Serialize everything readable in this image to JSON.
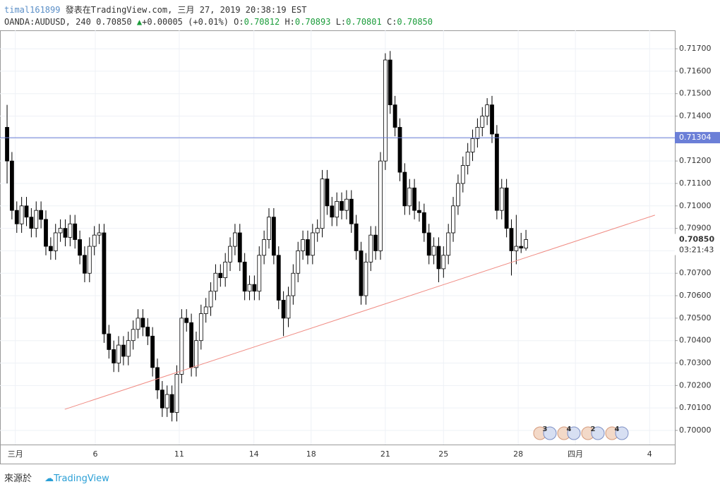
{
  "header": {
    "user": "timal161899",
    "published": "發表在TradingView.com, 三月 27, 2019 20:38:19 EST",
    "symbol": "OANDA:AUDUSD, 240",
    "price": "0.70850",
    "change": "+0.00005 (+0.01%)",
    "o_label": "O:",
    "o": "0.70812",
    "h_label": "H:",
    "h": "0.70893",
    "l_label": "L:",
    "l": "0.70801",
    "c_label": "C:",
    "c": "0.70850"
  },
  "footer": {
    "source": "來源於",
    "brand": "TradingView"
  },
  "chart_data": {
    "type": "candlestick",
    "open": [
      0.7135,
      0.712,
      0.7098,
      0.7092,
      0.71,
      0.7095,
      0.709,
      0.7098,
      0.7094,
      0.7082,
      0.708,
      0.7088,
      0.709,
      0.7086,
      0.7092,
      0.7085,
      0.7078,
      0.707,
      0.7082,
      0.7087,
      0.7088,
      0.7043,
      0.7036,
      0.703,
      0.7038,
      0.7033,
      0.704,
      0.7045,
      0.705,
      0.7046,
      0.7042,
      0.7028,
      0.7018,
      0.701,
      0.7016,
      0.7008,
      0.7025,
      0.705,
      0.7048,
      0.7028,
      0.704,
      0.7052,
      0.7055,
      0.7062,
      0.707,
      0.7068,
      0.7075,
      0.7082,
      0.7088,
      0.7075,
      0.7062,
      0.7065,
      0.7062,
      0.7078,
      0.7085,
      0.7095,
      0.7078,
      0.7058,
      0.705,
      0.706,
      0.707,
      0.708,
      0.7085,
      0.7078,
      0.7088,
      0.709,
      0.7112,
      0.71,
      0.7095,
      0.7102,
      0.7098,
      0.7103,
      0.7092,
      0.708,
      0.706,
      0.7075,
      0.7087,
      0.708,
      0.712,
      0.7165,
      0.7145,
      0.7135,
      0.7115,
      0.71,
      0.7108,
      0.7098,
      0.7097,
      0.7088,
      0.7078,
      0.7082,
      0.7072,
      0.7078,
      0.7088,
      0.71,
      0.711,
      0.7118,
      0.7124,
      0.713,
      0.7135,
      0.714,
      0.7145,
      0.7132,
      0.7098,
      0.7108,
      0.709,
      0.708,
      0.7082,
      0.70812
    ],
    "high": [
      0.7145,
      0.7124,
      0.7102,
      0.7104,
      0.7104,
      0.7099,
      0.7102,
      0.7102,
      0.7098,
      0.7086,
      0.7092,
      0.7094,
      0.7094,
      0.7096,
      0.7096,
      0.7089,
      0.7082,
      0.7086,
      0.7091,
      0.7092,
      0.7092,
      0.7047,
      0.704,
      0.7042,
      0.7042,
      0.7044,
      0.7049,
      0.7054,
      0.7054,
      0.705,
      0.7046,
      0.7032,
      0.7022,
      0.702,
      0.702,
      0.7029,
      0.7054,
      0.7054,
      0.7052,
      0.7044,
      0.7056,
      0.7059,
      0.7066,
      0.7074,
      0.7074,
      0.7079,
      0.7086,
      0.7092,
      0.7092,
      0.7079,
      0.7069,
      0.7069,
      0.7082,
      0.7089,
      0.7099,
      0.7099,
      0.7082,
      0.7062,
      0.7064,
      0.7074,
      0.7084,
      0.7089,
      0.7089,
      0.7092,
      0.7094,
      0.7116,
      0.7116,
      0.7104,
      0.7106,
      0.7106,
      0.7107,
      0.7107,
      0.7096,
      0.7084,
      0.7079,
      0.7091,
      0.7091,
      0.7124,
      0.7168,
      0.7169,
      0.7149,
      0.7139,
      0.7119,
      0.7112,
      0.7112,
      0.7102,
      0.7101,
      0.7092,
      0.7086,
      0.7086,
      0.7082,
      0.7092,
      0.7104,
      0.7114,
      0.7122,
      0.7128,
      0.7134,
      0.7139,
      0.7144,
      0.7148,
      0.7149,
      0.7136,
      0.7112,
      0.7112,
      0.7094,
      0.7096,
      0.7088,
      0.70893
    ],
    "low": [
      0.711,
      0.7094,
      0.7088,
      0.7088,
      0.7091,
      0.7086,
      0.7086,
      0.709,
      0.7078,
      0.7076,
      0.7076,
      0.7084,
      0.7082,
      0.7082,
      0.7081,
      0.7074,
      0.7066,
      0.7066,
      0.7078,
      0.7083,
      0.7039,
      0.7032,
      0.7026,
      0.7026,
      0.7029,
      0.7029,
      0.7036,
      0.7041,
      0.7042,
      0.7038,
      0.7024,
      0.7014,
      0.7006,
      0.7006,
      0.7004,
      0.7004,
      0.7021,
      0.7044,
      0.7024,
      0.7024,
      0.7036,
      0.7048,
      0.7051,
      0.7058,
      0.7064,
      0.7064,
      0.7071,
      0.7078,
      0.7071,
      0.7058,
      0.7058,
      0.7058,
      0.7058,
      0.7074,
      0.7081,
      0.7074,
      0.7054,
      0.7042,
      0.7046,
      0.7056,
      0.7066,
      0.7076,
      0.7074,
      0.7074,
      0.7084,
      0.7086,
      0.7096,
      0.7091,
      0.7091,
      0.7094,
      0.7094,
      0.7088,
      0.7076,
      0.7056,
      0.7056,
      0.7071,
      0.7076,
      0.7076,
      0.7116,
      0.7141,
      0.7131,
      0.7111,
      0.7096,
      0.7096,
      0.7094,
      0.7093,
      0.7084,
      0.7074,
      0.7074,
      0.7066,
      0.7068,
      0.7074,
      0.7084,
      0.7096,
      0.7106,
      0.7114,
      0.712,
      0.7126,
      0.7131,
      0.7136,
      0.7128,
      0.7094,
      0.7094,
      0.7086,
      0.7069,
      0.7074,
      0.7079,
      0.70801
    ],
    "close": [
      0.712,
      0.7098,
      0.7092,
      0.71,
      0.7095,
      0.709,
      0.7098,
      0.7094,
      0.7082,
      0.708,
      0.7088,
      0.709,
      0.7086,
      0.7092,
      0.7085,
      0.7078,
      0.707,
      0.7082,
      0.7087,
      0.7088,
      0.7043,
      0.7036,
      0.703,
      0.7038,
      0.7033,
      0.704,
      0.7045,
      0.705,
      0.7046,
      0.7042,
      0.7028,
      0.7018,
      0.701,
      0.7016,
      0.7008,
      0.7025,
      0.705,
      0.7048,
      0.7028,
      0.704,
      0.7052,
      0.7055,
      0.7062,
      0.707,
      0.7068,
      0.7075,
      0.7082,
      0.7088,
      0.7075,
      0.7062,
      0.7065,
      0.7062,
      0.7078,
      0.7085,
      0.7095,
      0.7078,
      0.7058,
      0.705,
      0.706,
      0.707,
      0.708,
      0.7085,
      0.7078,
      0.7088,
      0.709,
      0.7112,
      0.71,
      0.7095,
      0.7102,
      0.7098,
      0.7103,
      0.7092,
      0.708,
      0.706,
      0.7075,
      0.7087,
      0.708,
      0.712,
      0.7165,
      0.7145,
      0.7135,
      0.7115,
      0.71,
      0.7108,
      0.7098,
      0.7097,
      0.7088,
      0.7078,
      0.7082,
      0.7072,
      0.7078,
      0.7088,
      0.71,
      0.711,
      0.7118,
      0.7124,
      0.713,
      0.7135,
      0.714,
      0.7145,
      0.7132,
      0.7098,
      0.7108,
      0.709,
      0.708,
      0.7082,
      0.70812,
      0.7085
    ],
    "up_color": "#ffffff",
    "down_color": "#000000",
    "wick_color": "#000000",
    "xlim": [
      -1.46,
      137.7
    ],
    "xticks": [
      {
        "value": 1.7,
        "label": "三月"
      },
      {
        "value": 18.2,
        "label": "6"
      },
      {
        "value": 35.5,
        "label": "11"
      },
      {
        "value": 50.9,
        "label": "14"
      },
      {
        "value": 62.7,
        "label": "18"
      },
      {
        "value": 78.0,
        "label": "21"
      },
      {
        "value": 90.0,
        "label": "25"
      },
      {
        "value": 105.4,
        "label": "28"
      },
      {
        "value": 117.2,
        "label": "四月"
      },
      {
        "value": 132.5,
        "label": "4"
      }
    ],
    "ylim": [
      0.69937,
      0.71782
    ],
    "yticks": [
      {
        "value": 0.7,
        "label": "0.70000"
      },
      {
        "value": 0.701,
        "label": "0.70100"
      },
      {
        "value": 0.702,
        "label": "0.70200"
      },
      {
        "value": 0.703,
        "label": "0.70300"
      },
      {
        "value": 0.704,
        "label": "0.70400"
      },
      {
        "value": 0.705,
        "label": "0.70500"
      },
      {
        "value": 0.706,
        "label": "0.70600"
      },
      {
        "value": 0.707,
        "label": "0.70700"
      },
      {
        "value": 0.708,
        "label": "0.70800"
      },
      {
        "value": 0.709,
        "label": "0.70900"
      },
      {
        "value": 0.71,
        "label": "0.71000"
      },
      {
        "value": 0.711,
        "label": "0.71100"
      },
      {
        "value": 0.712,
        "label": "0.71200"
      },
      {
        "value": 0.713,
        "label": "0.71300"
      },
      {
        "value": 0.714,
        "label": "0.71400"
      },
      {
        "value": 0.715,
        "label": "0.71500"
      },
      {
        "value": 0.716,
        "label": "0.71600"
      },
      {
        "value": 0.717,
        "label": "0.71700"
      }
    ],
    "grid": true,
    "hline": {
      "value": 0.71304,
      "color": "#6b7fd7"
    },
    "trendline": {
      "x": [
        11.9,
        133.6
      ],
      "y": [
        0.70094,
        0.70959
      ],
      "color": "#f08c84"
    },
    "last_price": {
      "value": 0.7085,
      "label": "0.70850"
    },
    "countdown": "03:21:43",
    "events": [
      "3",
      "4",
      "2",
      "4"
    ]
  }
}
